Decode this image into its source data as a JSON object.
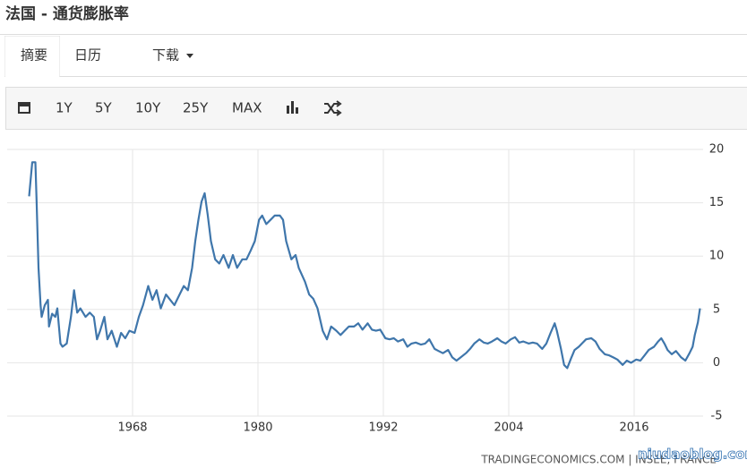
{
  "header": {
    "title": "法国 - 通货膨胀率"
  },
  "tabs": [
    "摘要",
    "日历",
    "下载"
  ],
  "toolbar": [
    "1Y",
    "5Y",
    "10Y",
    "25Y",
    "MAX"
  ],
  "chart_data": {
    "type": "line",
    "color": "#3f76ab",
    "x": [
      1958.1,
      1958.4,
      1958.7,
      1958.8,
      1959.0,
      1959.2,
      1959.3,
      1959.6,
      1959.9,
      1960.0,
      1960.3,
      1960.6,
      1960.8,
      1961.1,
      1961.3,
      1961.7,
      1962.1,
      1962.4,
      1962.7,
      1963.0,
      1963.5,
      1963.9,
      1964.3,
      1964.6,
      1964.9,
      1965.3,
      1965.6,
      1966.0,
      1966.5,
      1966.9,
      1967.3,
      1967.7,
      1968.2,
      1968.6,
      1969.0,
      1969.5,
      1969.9,
      1970.3,
      1970.7,
      1971.2,
      1971.6,
      1972.0,
      1972.5,
      1972.9,
      1973.3,
      1973.7,
      1974.0,
      1974.3,
      1974.6,
      1974.9,
      1975.2,
      1975.5,
      1975.9,
      1976.3,
      1976.7,
      1977.2,
      1977.6,
      1978.0,
      1978.5,
      1978.9,
      1979.3,
      1979.7,
      1980.1,
      1980.4,
      1980.8,
      1981.2,
      1981.6,
      1982.1,
      1982.4,
      1982.7,
      1983.2,
      1983.6,
      1983.9,
      1984.5,
      1984.9,
      1985.3,
      1985.7,
      1986.2,
      1986.6,
      1987.0,
      1987.5,
      1987.9,
      1988.3,
      1988.7,
      1989.2,
      1989.6,
      1990.0,
      1990.5,
      1990.9,
      1991.3,
      1991.7,
      1992.2,
      1992.6,
      1993.0,
      1993.4,
      1993.9,
      1994.3,
      1994.7,
      1995.1,
      1995.6,
      1996.0,
      1996.4,
      1996.9,
      1997.3,
      1997.7,
      1998.2,
      1998.6,
      1999.0,
      1999.4,
      1999.9,
      2000.3,
      2000.7,
      2001.2,
      2001.6,
      2002.0,
      2002.4,
      2002.9,
      2003.3,
      2003.7,
      2004.2,
      2004.6,
      2005.0,
      2005.4,
      2005.9,
      2006.3,
      2006.7,
      2007.2,
      2007.6,
      2008.0,
      2008.4,
      2008.6,
      2009.0,
      2009.3,
      2009.6,
      2010.0,
      2010.3,
      2010.7,
      2011.0,
      2011.4,
      2011.9,
      2012.3,
      2012.7,
      2013.2,
      2013.6,
      2014.0,
      2014.4,
      2014.9,
      2015.3,
      2015.7,
      2016.2,
      2016.6,
      2017.0,
      2017.4,
      2017.9,
      2018.3,
      2018.6,
      2018.9,
      2019.2,
      2019.6,
      2020.0,
      2020.5,
      2020.9,
      2021.3,
      2021.6,
      2021.8,
      2022.1,
      2022.3
    ],
    "values": [
      15.6,
      18.8,
      18.8,
      15.6,
      8.9,
      5.4,
      4.3,
      5.4,
      5.9,
      3.4,
      4.6,
      4.3,
      5.1,
      1.8,
      1.5,
      1.8,
      4.3,
      6.8,
      4.7,
      5.1,
      4.3,
      4.7,
      4.3,
      2.2,
      3.0,
      4.3,
      2.2,
      3.0,
      1.5,
      2.8,
      2.3,
      3.0,
      2.8,
      4.3,
      5.4,
      7.2,
      5.9,
      6.8,
      5.1,
      6.4,
      5.9,
      5.4,
      6.4,
      7.2,
      6.8,
      8.9,
      11.4,
      13.4,
      15.1,
      15.9,
      13.8,
      11.4,
      9.7,
      9.3,
      10.1,
      8.9,
      10.1,
      8.9,
      9.7,
      9.7,
      10.5,
      11.4,
      13.4,
      13.8,
      13.0,
      13.4,
      13.8,
      13.8,
      13.4,
      11.4,
      9.7,
      10.1,
      8.9,
      7.6,
      6.4,
      6.0,
      5.1,
      3.0,
      2.2,
      3.4,
      3.0,
      2.6,
      3.0,
      3.4,
      3.4,
      3.7,
      3.1,
      3.7,
      3.1,
      3.0,
      3.1,
      2.3,
      2.2,
      2.3,
      2.0,
      2.2,
      1.5,
      1.8,
      1.9,
      1.7,
      1.8,
      2.2,
      1.3,
      1.1,
      0.9,
      1.2,
      0.5,
      0.2,
      0.5,
      0.9,
      1.3,
      1.8,
      2.2,
      1.9,
      1.8,
      2.0,
      2.3,
      2.0,
      1.8,
      2.2,
      2.4,
      1.9,
      2.0,
      1.8,
      1.9,
      1.8,
      1.3,
      1.8,
      2.8,
      3.7,
      3.0,
      1.3,
      -0.2,
      -0.5,
      0.5,
      1.2,
      1.5,
      1.8,
      2.2,
      2.3,
      2.0,
      1.3,
      0.8,
      0.7,
      0.5,
      0.3,
      -0.2,
      0.2,
      0.0,
      0.3,
      0.2,
      0.7,
      1.2,
      1.5,
      2.0,
      2.3,
      1.8,
      1.2,
      0.8,
      1.1,
      0.5,
      0.2,
      0.9,
      1.5,
      2.6,
      3.8,
      5.1
    ],
    "xlim": [
      1956,
      2022.6
    ],
    "ylim": [
      -5,
      20
    ],
    "xticks": [
      1968,
      1980,
      1992,
      2004,
      2016
    ],
    "yticks": [
      -5,
      0,
      5,
      10,
      15,
      20
    ],
    "grid": true
  },
  "footer": {
    "source": "TRADINGECONOMICS.COM | INSEE, FRANCE"
  },
  "watermark": "niudaoblog.com"
}
